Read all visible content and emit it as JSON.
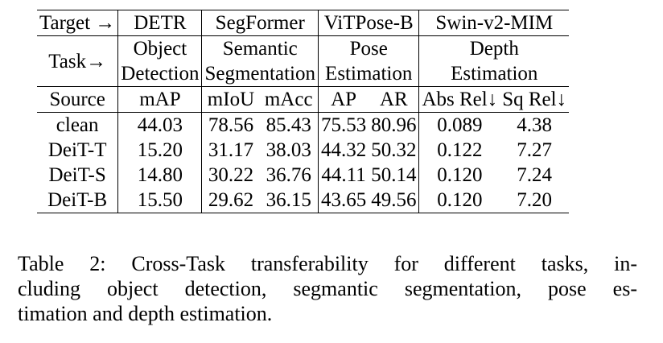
{
  "table": {
    "header_row1": {
      "target_label": "Target →",
      "models": [
        "DETR",
        "SegFormer",
        "ViTPose-B",
        "Swin-v2-MIM"
      ]
    },
    "header_row2": {
      "task_label": "Task→",
      "tasks": [
        {
          "line1": "Object",
          "line2": "Detection"
        },
        {
          "line1": "Semantic",
          "line2": "Segmentation"
        },
        {
          "line1": "Pose",
          "line2": "Estimation"
        },
        {
          "line1": "Depth",
          "line2": "Estimation"
        }
      ]
    },
    "header_row3": {
      "source_label": "Source",
      "metrics": [
        "mAP",
        "mIoU",
        "mAcc",
        "AP",
        "AR",
        "Abs Rel↓",
        "Sq Rel↓"
      ]
    },
    "rows": [
      {
        "source": "clean",
        "values": [
          "44.03",
          "78.56",
          "85.43",
          "75.53",
          "80.96",
          "0.089",
          "4.38"
        ]
      },
      {
        "source": "DeiT-T",
        "values": [
          "15.20",
          "31.17",
          "38.03",
          "44.32",
          "50.32",
          "0.122",
          "7.27"
        ]
      },
      {
        "source": "DeiT-S",
        "values": [
          "14.80",
          "30.22",
          "36.76",
          "44.11",
          "50.14",
          "0.120",
          "7.24"
        ]
      },
      {
        "source": "DeiT-B",
        "values": [
          "15.50",
          "29.62",
          "36.15",
          "43.65",
          "49.56",
          "0.120",
          "7.20"
        ]
      }
    ]
  },
  "caption": {
    "line1": "Table 2: Cross-Task transferability for different tasks, in-",
    "line2": "cluding object detection, segmantic segmentation, pose es-",
    "line3": "timation and depth estimation."
  }
}
